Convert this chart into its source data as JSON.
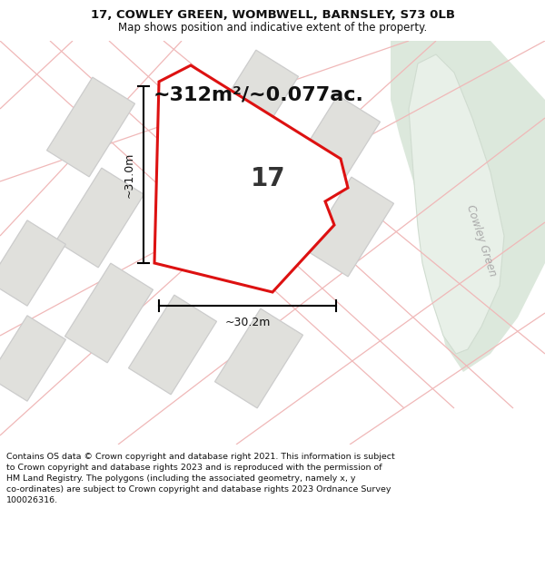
{
  "title_line1": "17, COWLEY GREEN, WOMBWELL, BARNSLEY, S73 0LB",
  "title_line2": "Map shows position and indicative extent of the property.",
  "area_text": "~312m²/~0.077ac.",
  "property_number": "17",
  "dim_horizontal": "~30.2m",
  "dim_vertical": "~31.0m",
  "road_label": "Cowley Green",
  "footer_text": "Contains OS data © Crown copyright and database right 2021. This information is subject to Crown copyright and database rights 2023 and is reproduced with the permission of HM Land Registry. The polygons (including the associated geometry, namely x, y co-ordinates) are subject to Crown copyright and database rights 2023 Ordnance Survey 100026316.",
  "bg_color": "#f5f5f3",
  "map_bg": "#f5f5f3",
  "plot_fill": "#e0e0dc",
  "plot_outline_color": "#cccccc",
  "pink_line_color": "#f0b8b8",
  "highlight_fill": "white",
  "highlight_outline": "#dd1111",
  "road_area_color": "#dce8dc",
  "road_line_color": "#c8c8c8",
  "footer_bg": "white",
  "title_bg": "white",
  "title_fontsize": 9.5,
  "subtitle_fontsize": 8.5,
  "area_fontsize": 16,
  "number_fontsize": 20,
  "dim_fontsize": 9,
  "footer_fontsize": 6.8
}
